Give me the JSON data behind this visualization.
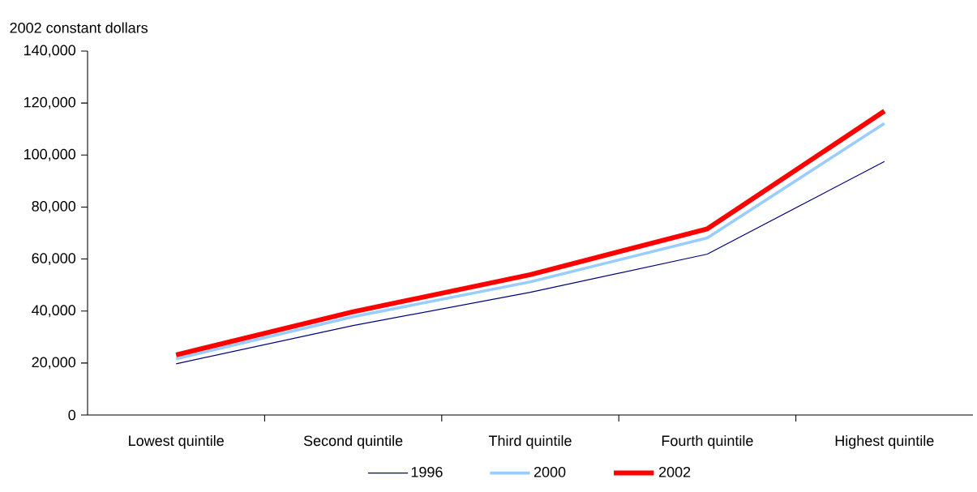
{
  "chart_data": {
    "type": "line",
    "ylabel": "2002 constant dollars",
    "categories": [
      "Lowest quintile",
      "Second quintile",
      "Third quintile",
      "Fourth quintile",
      "Highest quintile"
    ],
    "series": [
      {
        "name": "1996",
        "color": "#000080",
        "values": [
          19700,
          34400,
          47200,
          61900,
          97500
        ]
      },
      {
        "name": "2000",
        "color": "#99ccff",
        "values": [
          21600,
          37800,
          51200,
          68100,
          112200
        ]
      },
      {
        "name": "2002",
        "color": "#ff0000",
        "values": [
          23100,
          39700,
          54000,
          71600,
          116900
        ]
      }
    ],
    "ylim": [
      0,
      140000
    ],
    "yticks": [
      {
        "value": 0,
        "label": "0"
      },
      {
        "value": 20000,
        "label": "20,000"
      },
      {
        "value": 40000,
        "label": "40,000"
      },
      {
        "value": 60000,
        "label": "60,000"
      },
      {
        "value": 80000,
        "label": "80,000"
      },
      {
        "value": 100000,
        "label": "100,000"
      },
      {
        "value": 120000,
        "label": "120,000"
      },
      {
        "value": 140000,
        "label": "140,000"
      }
    ],
    "legend": "bottom",
    "grid": false,
    "marker": "none",
    "line_style": "solid"
  }
}
